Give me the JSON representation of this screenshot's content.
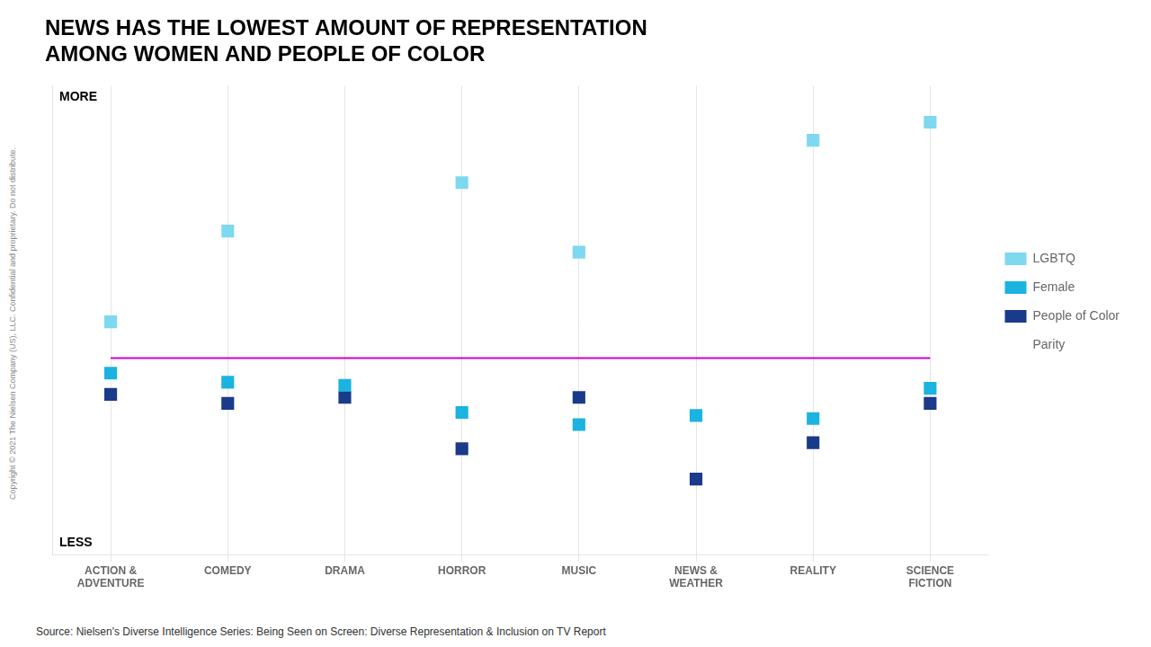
{
  "chart_data": {
    "type": "scatter",
    "title": [
      "NEWS HAS THE LOWEST AMOUNT OF REPRESENTATION",
      "AMONG WOMEN AND PEOPLE OF COLOR"
    ],
    "categories": [
      "ACTION &\nADVENTURE",
      "COMEDY",
      "DRAMA",
      "HORROR",
      "MUSIC",
      "NEWS &\nWEATHER",
      "REALITY",
      "SCIENCE\nFICTION"
    ],
    "series": [
      {
        "name": "Parity",
        "type": "line",
        "color": "#CC00CC",
        "values": [
          0,
          0,
          0,
          0,
          0,
          0,
          0,
          0
        ]
      },
      {
        "name": "LGBTQ",
        "color": "#7DD8F0",
        "marker": "square",
        "values": [
          1.2,
          4.2,
          null,
          5.8,
          3.5,
          null,
          7.2,
          7.8
        ]
      },
      {
        "name": "Female",
        "color": "#1BB3E0",
        "marker": "square",
        "values": [
          -0.5,
          -0.8,
          -0.9,
          -1.8,
          -2.2,
          -1.9,
          -2.0,
          -1.0
        ]
      },
      {
        "name": "People of Color",
        "color": "#1A3A8A",
        "marker": "square",
        "values": [
          -1.2,
          -1.5,
          -1.3,
          -3.0,
          -1.3,
          -4.0,
          -2.8,
          -1.5
        ]
      }
    ],
    "ylim": [
      -6.5,
      9.0
    ],
    "annotations": [
      {
        "text": "MORE",
        "position": "top left"
      },
      {
        "text": "LESS",
        "position": "bottom left"
      }
    ],
    "source": "Source: Nielsen's Diverse Intelligence Series: Being Seen on Screen: Diverse Representation & Inclusion on TV Report",
    "copyright": "Copyright © 2021 The Nielsen Company (US), LLC. Confidential and proprietary. Do not distribute.",
    "grid": "x",
    "tick_labels": "x",
    "legend": "right"
  }
}
